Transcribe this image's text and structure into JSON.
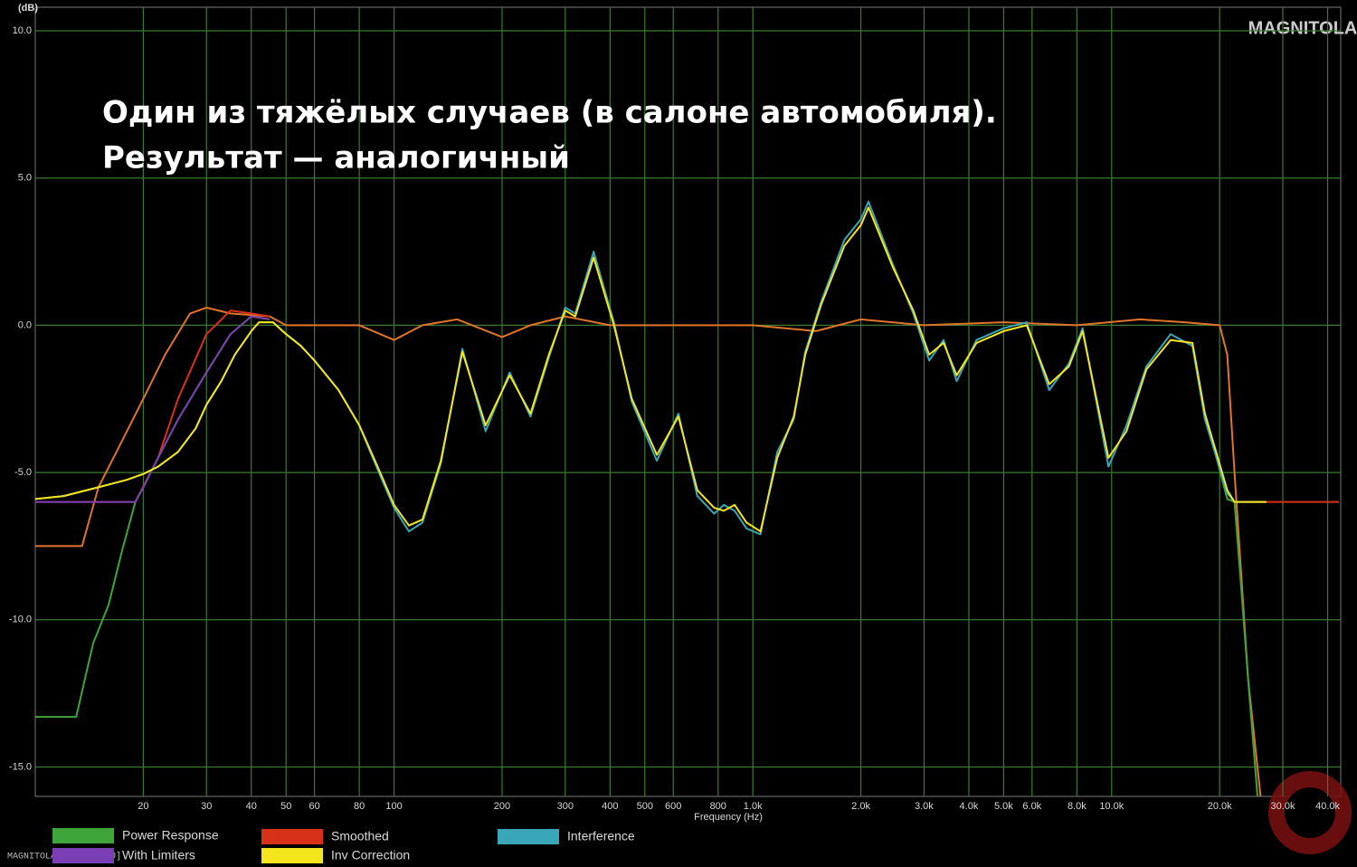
{
  "chart_data": {
    "type": "line",
    "title_lines": [
      "Один из тяжёлых случаев (в салоне автомобиля).",
      "Результат — аналогичный"
    ],
    "x_label": "Frequency (Hz)",
    "y_label": "(dB)",
    "logo": "MAGNITOLA",
    "watermark": "MAGNITOLA[.ORG] [.RU]",
    "xscale": "log",
    "grid": true,
    "xlim": [
      10,
      43500
    ],
    "ylim": [
      -16,
      10.8
    ],
    "xticks": [
      20,
      30,
      40,
      50,
      60,
      80,
      100,
      200,
      300,
      400,
      500,
      600,
      800,
      {
        "value": 1000,
        "label": "1.0k"
      },
      {
        "value": 2000,
        "label": "2.0k"
      },
      {
        "value": 3000,
        "label": "3.0k"
      },
      {
        "value": 4000,
        "label": "4.0k"
      },
      {
        "value": 5000,
        "label": "5.0k"
      },
      {
        "value": 6000,
        "label": "6.0k"
      },
      {
        "value": 8000,
        "label": "8.0k"
      },
      {
        "value": 10000,
        "label": "10.0k"
      },
      {
        "value": 20000,
        "label": "20.0k"
      },
      {
        "value": 30000,
        "label": "30.0k"
      },
      {
        "value": 40000,
        "label": "40.0k"
      }
    ],
    "yticks": [
      {
        "value": 10,
        "label": "10.0"
      },
      {
        "value": 5,
        "label": "5.0"
      },
      {
        "value": 0,
        "label": "0.0"
      },
      {
        "value": -5,
        "label": "-5.0"
      },
      {
        "value": -10,
        "label": "-10.0"
      },
      {
        "value": -15,
        "label": "-15.0"
      }
    ],
    "series": [
      {
        "color": "#e0752a",
        "x": [
          10,
          13.5,
          15,
          17,
          20,
          23,
          27,
          30,
          35,
          45,
          50,
          80,
          100,
          120,
          150,
          200,
          240,
          300,
          400,
          600,
          1000,
          1500,
          2000,
          3000,
          5000,
          8000,
          12000,
          16000,
          20000,
          21000,
          22000,
          24000,
          26000
        ],
        "values": [
          -7.5,
          -7.5,
          -5.5,
          -4.2,
          -2.5,
          -1.0,
          0.4,
          0.6,
          0.4,
          0.3,
          0.0,
          0.0,
          -0.5,
          0.0,
          0.2,
          -0.4,
          0.0,
          0.3,
          0.0,
          0.0,
          0.0,
          -0.2,
          0.2,
          0.0,
          0.1,
          0.0,
          0.2,
          0.1,
          0.0,
          -1.0,
          -5.0,
          -12.0,
          -16.0
        ]
      },
      {
        "name": "Smoothed",
        "color": "#d9301a",
        "x": [
          10,
          19,
          22,
          25,
          30,
          35,
          40,
          45,
          1000,
          22000,
          43000
        ],
        "values": [
          -6.0,
          -6.0,
          -4.5,
          -2.5,
          -0.3,
          0.5,
          0.4,
          0.3,
          null,
          -6.0,
          -6.0
        ]
      },
      {
        "name": "Power Response",
        "color": "#3fa53a",
        "x": [
          10,
          13,
          14.5,
          16,
          17.5,
          19,
          20,
          22,
          25,
          30,
          35,
          40,
          45,
          1000,
          18200,
          21000,
          22000,
          23000,
          24000,
          25500
        ],
        "values": [
          -13.3,
          -13.3,
          -10.8,
          -9.5,
          -7.6,
          -6.0,
          -5.5,
          -4.5,
          -3.2,
          -1.6,
          -0.3,
          0.3,
          0.2,
          null,
          -3.0,
          -5.9,
          -6.0,
          -9.0,
          -12.0,
          -16.0
        ]
      },
      {
        "name": "With Limiters",
        "color": "#7b3fb5",
        "x": [
          10,
          19,
          20,
          22,
          25,
          30,
          35,
          40,
          45
        ],
        "values": [
          -6.0,
          -6.0,
          -5.5,
          -4.5,
          -3.2,
          -1.6,
          -0.3,
          0.3,
          0.2
        ]
      },
      {
        "name": "Interference",
        "color": "#3aa7b8",
        "x": [
          10,
          12,
          15,
          18,
          20,
          22,
          25,
          28,
          30,
          33,
          36,
          40,
          42,
          46,
          50,
          55,
          60,
          70,
          80,
          90,
          100,
          110,
          120,
          135,
          155,
          180,
          210,
          240,
          270,
          300,
          320,
          360,
          410,
          460,
          540,
          620,
          700,
          780,
          830,
          890,
          960,
          1050,
          1170,
          1300,
          1400,
          1550,
          1800,
          2000,
          2100,
          2450,
          2800,
          3100,
          3400,
          3700,
          4200,
          5000,
          5800,
          6700,
          7600,
          8300,
          9800,
          11000,
          12500,
          14600,
          16800,
          18200,
          21000,
          22000,
          27000
        ],
        "values": [
          -5.9,
          -5.8,
          -5.5,
          -5.25,
          -5.05,
          -4.8,
          -4.3,
          -3.5,
          -2.7,
          -1.9,
          -1.0,
          -0.2,
          0.1,
          0.1,
          -0.3,
          -0.7,
          -1.2,
          -2.2,
          -3.4,
          -4.9,
          -6.2,
          -7.0,
          -6.7,
          -4.7,
          -0.8,
          -3.6,
          -1.6,
          -3.1,
          -1.1,
          0.6,
          0.4,
          2.5,
          0.1,
          -2.6,
          -4.6,
          -3.0,
          -5.8,
          -6.4,
          -6.1,
          -6.3,
          -6.9,
          -7.1,
          -4.3,
          -3.2,
          -0.9,
          0.8,
          2.9,
          3.6,
          4.2,
          2.1,
          0.4,
          -1.2,
          -0.5,
          -1.9,
          -0.5,
          -0.1,
          0.1,
          -2.2,
          -1.3,
          -0.1,
          -4.8,
          -3.4,
          -1.4,
          -0.3,
          -0.7,
          -3.2,
          -5.7,
          -6.0,
          -6.0
        ]
      },
      {
        "name": "Inv Correction",
        "color": "#f5e51c",
        "x": [
          10,
          12,
          15,
          18,
          20,
          22,
          25,
          28,
          30,
          33,
          36,
          40,
          42,
          46,
          50,
          55,
          60,
          70,
          80,
          90,
          100,
          110,
          120,
          135,
          155,
          180,
          210,
          240,
          270,
          300,
          320,
          360,
          410,
          460,
          540,
          620,
          700,
          780,
          830,
          890,
          960,
          1050,
          1170,
          1300,
          1400,
          1550,
          1800,
          2000,
          2100,
          2450,
          2800,
          3100,
          3400,
          3700,
          4200,
          5000,
          5800,
          6700,
          7600,
          8300,
          9800,
          11000,
          12500,
          14600,
          16800,
          18200,
          21000,
          22000,
          27000
        ],
        "values": [
          -5.9,
          -5.8,
          -5.5,
          -5.25,
          -5.05,
          -4.8,
          -4.3,
          -3.5,
          -2.7,
          -1.9,
          -1.0,
          -0.2,
          0.1,
          0.1,
          -0.3,
          -0.7,
          -1.2,
          -2.2,
          -3.4,
          -4.8,
          -6.1,
          -6.8,
          -6.6,
          -4.6,
          -0.9,
          -3.4,
          -1.7,
          -3.0,
          -1.0,
          0.5,
          0.3,
          2.3,
          0.0,
          -2.5,
          -4.4,
          -3.1,
          -5.6,
          -6.2,
          -6.3,
          -6.1,
          -6.7,
          -7.0,
          -4.5,
          -3.1,
          -1.0,
          0.7,
          2.7,
          3.4,
          4.0,
          2.0,
          0.5,
          -1.0,
          -0.6,
          -1.7,
          -0.6,
          -0.2,
          0.0,
          -2.0,
          -1.4,
          -0.2,
          -4.5,
          -3.6,
          -1.5,
          -0.5,
          -0.6,
          -3.0,
          -5.6,
          -6.0,
          -6.0
        ]
      }
    ]
  }
}
